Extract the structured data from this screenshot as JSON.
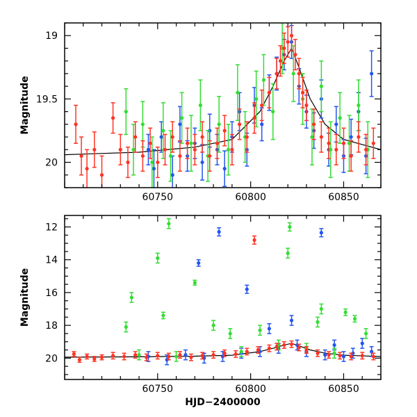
{
  "chart_data": [
    {
      "type": "scatter",
      "title": "",
      "xlabel": "",
      "ylabel": "Magnitude",
      "xlim": [
        60700,
        60870
      ],
      "ylim": [
        20.2,
        18.9
      ],
      "y_inverted": true,
      "grid": false,
      "xticks": [
        60750,
        60800,
        60850
      ],
      "yticks": [
        19,
        19.5,
        20
      ],
      "series": [
        {
          "color": "#2255ee",
          "points": [
            [
              60745,
              19.9,
              0.12
            ],
            [
              60748,
              20.05,
              0.15
            ],
            [
              60752,
              19.8,
              0.12
            ],
            [
              60758,
              20.1,
              0.15
            ],
            [
              60762,
              19.7,
              0.14
            ],
            [
              60766,
              19.95,
              0.12
            ],
            [
              60770,
              19.85,
              0.12
            ],
            [
              60774,
              20.0,
              0.14
            ],
            [
              60778,
              19.75,
              0.13
            ],
            [
              60782,
              19.9,
              0.12
            ],
            [
              60786,
              20.05,
              0.14
            ],
            [
              60790,
              19.8,
              0.12
            ],
            [
              60794,
              19.6,
              0.15
            ],
            [
              60798,
              19.9,
              0.13
            ],
            [
              60802,
              19.55,
              0.14
            ],
            [
              60806,
              19.7,
              0.13
            ],
            [
              60810,
              19.45,
              0.14
            ],
            [
              60814,
              19.3,
              0.13
            ],
            [
              60818,
              19.15,
              0.12
            ],
            [
              60822,
              19.05,
              0.13
            ],
            [
              60826,
              19.4,
              0.14
            ],
            [
              60830,
              19.6,
              0.13
            ],
            [
              60834,
              19.75,
              0.14
            ],
            [
              60838,
              19.5,
              0.15
            ],
            [
              60842,
              19.9,
              0.13
            ],
            [
              60846,
              19.7,
              0.14
            ],
            [
              60850,
              19.95,
              0.13
            ],
            [
              60854,
              19.8,
              0.14
            ],
            [
              60858,
              19.6,
              0.15
            ],
            [
              60862,
              19.95,
              0.14
            ],
            [
              60865,
              19.3,
              0.18
            ]
          ]
        },
        {
          "color": "#33dd33",
          "points": [
            [
              60733,
              19.6,
              0.18
            ],
            [
              60737,
              19.9,
              0.2
            ],
            [
              60742,
              19.7,
              0.18
            ],
            [
              60747,
              20.0,
              0.2
            ],
            [
              60753,
              19.75,
              0.22
            ],
            [
              60757,
              19.95,
              0.2
            ],
            [
              60763,
              19.65,
              0.2
            ],
            [
              60768,
              19.85,
              0.22
            ],
            [
              60773,
              19.55,
              0.2
            ],
            [
              60777,
              19.95,
              0.2
            ],
            [
              60783,
              19.7,
              0.22
            ],
            [
              60788,
              19.9,
              0.2
            ],
            [
              60793,
              19.45,
              0.22
            ],
            [
              60797,
              19.8,
              0.2
            ],
            [
              60803,
              19.5,
              0.22
            ],
            [
              60807,
              19.35,
              0.2
            ],
            [
              60812,
              19.6,
              0.22
            ],
            [
              60817,
              19.1,
              0.2
            ],
            [
              60823,
              19.3,
              0.22
            ],
            [
              60828,
              19.5,
              0.2
            ],
            [
              60833,
              19.8,
              0.22
            ],
            [
              60838,
              19.4,
              0.2
            ],
            [
              60843,
              19.9,
              0.22
            ],
            [
              60848,
              19.65,
              0.2
            ],
            [
              60853,
              19.85,
              0.22
            ],
            [
              60858,
              19.55,
              0.2
            ],
            [
              60863,
              19.9,
              0.22
            ]
          ]
        },
        {
          "color": "#ff3322",
          "points": [
            [
              60706,
              19.7,
              0.15
            ],
            [
              60709,
              19.95,
              0.15
            ],
            [
              60712,
              20.05,
              0.15
            ],
            [
              60716,
              19.9,
              0.14
            ],
            [
              60720,
              20.1,
              0.15
            ],
            [
              60726,
              19.65,
              0.12
            ],
            [
              60730,
              19.9,
              0.12
            ],
            [
              60734,
              20.0,
              0.12
            ],
            [
              60738,
              19.8,
              0.12
            ],
            [
              60742,
              19.95,
              0.12
            ],
            [
              60746,
              19.85,
              0.12
            ],
            [
              60750,
              20.0,
              0.12
            ],
            [
              60754,
              19.9,
              0.12
            ],
            [
              60758,
              19.8,
              0.12
            ],
            [
              60762,
              19.95,
              0.12
            ],
            [
              60766,
              19.85,
              0.12
            ],
            [
              60770,
              19.9,
              0.12
            ],
            [
              60774,
              19.8,
              0.12
            ],
            [
              60778,
              19.95,
              0.12
            ],
            [
              60782,
              19.85,
              0.12
            ],
            [
              60786,
              19.75,
              0.12
            ],
            [
              60790,
              19.9,
              0.12
            ],
            [
              60794,
              19.7,
              0.12
            ],
            [
              60798,
              19.8,
              0.12
            ],
            [
              60802,
              19.65,
              0.12
            ],
            [
              60806,
              19.55,
              0.12
            ],
            [
              60810,
              19.45,
              0.12
            ],
            [
              60814,
              19.3,
              0.12
            ],
            [
              60816,
              19.2,
              0.12
            ],
            [
              60818,
              19.1,
              0.12
            ],
            [
              60820,
              19.05,
              0.12
            ],
            [
              60822,
              19.0,
              0.12
            ],
            [
              60824,
              19.15,
              0.12
            ],
            [
              60826,
              19.3,
              0.12
            ],
            [
              60828,
              19.45,
              0.12
            ],
            [
              60830,
              19.55,
              0.12
            ],
            [
              60834,
              19.7,
              0.12
            ],
            [
              60838,
              19.8,
              0.12
            ],
            [
              60842,
              19.85,
              0.12
            ],
            [
              60846,
              19.9,
              0.12
            ],
            [
              60850,
              19.85,
              0.12
            ],
            [
              60854,
              19.95,
              0.12
            ],
            [
              60858,
              19.8,
              0.12
            ],
            [
              60862,
              19.9,
              0.12
            ],
            [
              60866,
              19.85,
              0.12
            ]
          ]
        }
      ],
      "model_curve": {
        "color": "#000000",
        "points": [
          [
            60700,
            19.94
          ],
          [
            60740,
            19.92
          ],
          [
            60770,
            19.88
          ],
          [
            60790,
            19.82
          ],
          [
            60805,
            19.6
          ],
          [
            60812,
            19.4
          ],
          [
            60818,
            19.2
          ],
          [
            60822,
            19.1
          ],
          [
            60826,
            19.25
          ],
          [
            60832,
            19.5
          ],
          [
            60840,
            19.7
          ],
          [
            60850,
            19.82
          ],
          [
            60870,
            19.9
          ]
        ]
      }
    },
    {
      "type": "scatter",
      "title": "",
      "xlabel": "HJD−2400000",
      "ylabel": "Magnitude",
      "xlim": [
        60700,
        60870
      ],
      "ylim": [
        21.3,
        11.3
      ],
      "y_inverted": true,
      "grid": false,
      "xticks": [
        60750,
        60800,
        60850
      ],
      "yticks": [
        12,
        14,
        16,
        18,
        20
      ],
      "series": [
        {
          "color": "#2255ee",
          "points": [
            [
              60772,
              14.2,
              0.2
            ],
            [
              60783,
              12.3,
              0.25
            ],
            [
              60798,
              15.8,
              0.25
            ],
            [
              60838,
              12.35,
              0.25
            ],
            [
              60745,
              19.9,
              0.3
            ],
            [
              60755,
              20.1,
              0.3
            ],
            [
              60765,
              19.8,
              0.3
            ],
            [
              60775,
              20.0,
              0.3
            ],
            [
              60785,
              19.9,
              0.3
            ],
            [
              60795,
              19.7,
              0.3
            ],
            [
              60805,
              19.6,
              0.3
            ],
            [
              60810,
              18.2,
              0.3
            ],
            [
              60815,
              19.4,
              0.3
            ],
            [
              60822,
              17.7,
              0.3
            ],
            [
              60825,
              19.2,
              0.3
            ],
            [
              60830,
              19.6,
              0.3
            ],
            [
              60840,
              19.8,
              0.3
            ],
            [
              60845,
              19.2,
              0.3
            ],
            [
              60850,
              19.9,
              0.3
            ],
            [
              60855,
              19.7,
              0.3
            ],
            [
              60860,
              19.1,
              0.3
            ],
            [
              60865,
              19.6,
              0.3
            ]
          ]
        },
        {
          "color": "#33dd33",
          "points": [
            [
              60733,
              18.1,
              0.3
            ],
            [
              60736,
              16.3,
              0.3
            ],
            [
              60750,
              13.9,
              0.3
            ],
            [
              60753,
              17.4,
              0.2
            ],
            [
              60756,
              11.8,
              0.3
            ],
            [
              60770,
              15.4,
              0.15
            ],
            [
              60780,
              18.0,
              0.3
            ],
            [
              60789,
              18.5,
              0.3
            ],
            [
              60805,
              18.3,
              0.3
            ],
            [
              60820,
              13.6,
              0.3
            ],
            [
              60821,
              12.0,
              0.25
            ],
            [
              60836,
              17.8,
              0.3
            ],
            [
              60838,
              17.0,
              0.3
            ],
            [
              60851,
              17.2,
              0.2
            ],
            [
              60856,
              17.6,
              0.2
            ],
            [
              60862,
              18.5,
              0.3
            ],
            [
              60740,
              19.8,
              0.3
            ],
            [
              60760,
              19.9,
              0.3
            ],
            [
              60795,
              19.6,
              0.3
            ],
            [
              60815,
              19.2,
              0.3
            ],
            [
              60830,
              19.4,
              0.3
            ],
            [
              60845,
              19.7,
              0.3
            ]
          ]
        },
        {
          "color": "#ff3322",
          "points": [
            [
              60802,
              12.8,
              0.25
            ],
            [
              60705,
              19.75,
              0.15
            ],
            [
              60708,
              20.1,
              0.15
            ],
            [
              60712,
              19.9,
              0.15
            ],
            [
              60716,
              20.05,
              0.15
            ],
            [
              60720,
              19.95,
              0.15
            ],
            [
              60726,
              19.85,
              0.2
            ],
            [
              60732,
              19.9,
              0.2
            ],
            [
              60738,
              19.8,
              0.2
            ],
            [
              60744,
              19.95,
              0.2
            ],
            [
              60750,
              19.85,
              0.2
            ],
            [
              60756,
              19.9,
              0.2
            ],
            [
              60762,
              19.8,
              0.2
            ],
            [
              60768,
              19.95,
              0.2
            ],
            [
              60774,
              19.85,
              0.2
            ],
            [
              60780,
              19.8,
              0.2
            ],
            [
              60786,
              19.7,
              0.2
            ],
            [
              60792,
              19.75,
              0.2
            ],
            [
              60798,
              19.6,
              0.2
            ],
            [
              60804,
              19.5,
              0.2
            ],
            [
              60810,
              19.4,
              0.2
            ],
            [
              60814,
              19.3,
              0.2
            ],
            [
              60818,
              19.2,
              0.2
            ],
            [
              60822,
              19.15,
              0.2
            ],
            [
              60826,
              19.35,
              0.2
            ],
            [
              60830,
              19.5,
              0.2
            ],
            [
              60836,
              19.7,
              0.2
            ],
            [
              60842,
              19.8,
              0.2
            ],
            [
              60848,
              19.85,
              0.2
            ],
            [
              60854,
              19.9,
              0.2
            ],
            [
              60860,
              19.85,
              0.2
            ],
            [
              60866,
              19.9,
              0.2
            ]
          ]
        }
      ],
      "model_curve": {
        "color": "#000000",
        "points": [
          [
            60700,
            19.94
          ],
          [
            60740,
            19.92
          ],
          [
            60770,
            19.88
          ],
          [
            60790,
            19.82
          ],
          [
            60805,
            19.6
          ],
          [
            60812,
            19.4
          ],
          [
            60818,
            19.2
          ],
          [
            60822,
            19.1
          ],
          [
            60826,
            19.25
          ],
          [
            60832,
            19.5
          ],
          [
            60840,
            19.7
          ],
          [
            60850,
            19.82
          ],
          [
            60870,
            19.9
          ]
        ]
      }
    }
  ]
}
